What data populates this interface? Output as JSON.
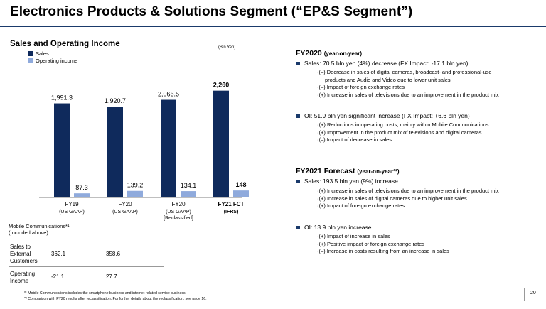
{
  "title": "Electronics Products & Solutions Segment (“EP&S Segment”)",
  "left": {
    "subtitle": "Sales and Operating Income",
    "unit": "(Bln Yen)",
    "legend": {
      "sales": "Sales",
      "oi": "Operating income"
    }
  },
  "chart_data": {
    "type": "bar",
    "categories": [
      "FY19",
      "FY20",
      "FY20",
      "FY21 FCT"
    ],
    "category_sublabels": [
      "(US GAAP)",
      "(US GAAP)",
      "(US GAAP)\n[Reclassified]",
      "(IFRS)"
    ],
    "series": [
      {
        "name": "Sales",
        "values": [
          1991.3,
          1920.7,
          2066.5,
          2260
        ],
        "labels": [
          "1,991.3",
          "1,920.7",
          "2,066.5",
          "2,260"
        ]
      },
      {
        "name": "Operating income",
        "values": [
          87.3,
          139.2,
          134.1,
          148
        ],
        "labels": [
          "87.3",
          "139.2",
          "134.1",
          "148"
        ]
      }
    ],
    "colors": {
      "sales": "#0f2a5c",
      "oi": "#8faadc"
    },
    "bold_category_index": 3
  },
  "table": {
    "header_line1": "Mobile Communications*¹",
    "header_line2": "(Included above)",
    "rows": [
      {
        "label": [
          "Sales to",
          "External",
          "Customers"
        ],
        "fy19": "362.1",
        "fy20": "358.6"
      },
      {
        "label": [
          "Operating",
          "Income"
        ],
        "fy19": "-21.1",
        "fy20": "27.7"
      }
    ]
  },
  "footnotes": [
    "*¹ Mobile Communications includes the smartphone business and internet-related service business.",
    "*² Comparison with FY20 results after reclassification. For further details about the reclassification, see page 16."
  ],
  "page_number": "20",
  "right": {
    "fy2020": {
      "heading": "FY2020",
      "heading_small": "(year-on-year)",
      "sales_bullet": "Sales: 70.5 bln yen (4%) decrease (FX Impact: -17.1 bln yen)",
      "sales_items": [
        "·(–) Decrease in sales of digital cameras, broadcast- and professional-use",
        "products and Audio and Video due to lower unit sales",
        "·(–) Impact of foreign exchange rates",
        "·(+) Increase in sales of televisions due to an improvement in the product mix"
      ],
      "oi_bullet": "OI: 51.9 bln yen significant increase (FX Impact: +6.6 bln yen)",
      "oi_items": [
        "·(+) Reductions in operating costs, mainly within Mobile Communications",
        "·(+) Improvement in the product mix of televisions and digital cameras",
        "·(–) Impact of decrease in sales"
      ]
    },
    "fy2021": {
      "heading": "FY2021 Forecast",
      "heading_small": "(year-on-year*²)",
      "sales_bullet": "Sales: 193.5 bln yen (9%) increase",
      "sales_items": [
        "·(+) Increase in sales of televisions due to an improvement in the product mix",
        "·(+) Increase in sales of digital cameras due to higher unit sales",
        "·(+) Impact of foreign exchange rates"
      ],
      "oi_bullet": "OI: 13.9 bln yen increase",
      "oi_items": [
        "·(+) Impact of increase in sales",
        "·(+) Positive impact of foreign exchange rates",
        "·(–) Increase in costs resulting from an increase in sales"
      ]
    }
  }
}
